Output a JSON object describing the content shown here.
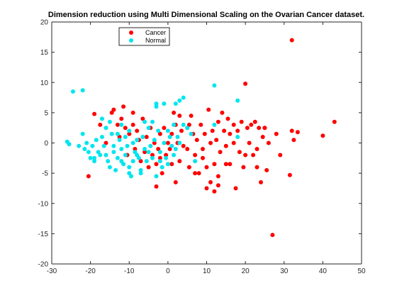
{
  "chart_data": {
    "type": "scatter",
    "title": "Dimension reduction using Multi Dimensional Scaling on the Ovarian Cancer dataset.",
    "xlabel": "",
    "ylabel": "",
    "xlim": [
      -30,
      50
    ],
    "ylim": [
      -20,
      20
    ],
    "xticks": [
      "-30",
      "-20",
      "-10",
      "0",
      "10",
      "20",
      "30",
      "40",
      "50"
    ],
    "yticks": [
      "-20",
      "-15",
      "-10",
      "-5",
      "0",
      "5",
      "10",
      "15",
      "20"
    ],
    "grid": false,
    "legend_position": "top-left",
    "series": [
      {
        "name": "Cancer",
        "color": "#ff0000",
        "points": [
          [
            32,
            17
          ],
          [
            -19,
            4.8
          ],
          [
            -20.5,
            -5.5
          ],
          [
            -17.5,
            3
          ],
          [
            -16,
            0
          ],
          [
            -14.5,
            5
          ],
          [
            -14,
            5.5
          ],
          [
            -13,
            3
          ],
          [
            -12.5,
            1
          ],
          [
            -12,
            4
          ],
          [
            -11.5,
            6
          ],
          [
            -11,
            2.5
          ],
          [
            -10.5,
            -2
          ],
          [
            -10,
            1.5
          ],
          [
            -9,
            5
          ],
          [
            -9,
            3
          ],
          [
            -8.5,
            -1
          ],
          [
            -8,
            2
          ],
          [
            -7.5,
            0.5
          ],
          [
            -7,
            -3
          ],
          [
            -6.5,
            4
          ],
          [
            -6,
            -1.5
          ],
          [
            -5.5,
            1
          ],
          [
            -5,
            -4
          ],
          [
            -4.5,
            2.5
          ],
          [
            -4,
            -2
          ],
          [
            -3.5,
            0
          ],
          [
            -3,
            -3.5
          ],
          [
            -3,
            -7.2
          ],
          [
            -2.5,
            -1
          ],
          [
            -2,
            1.5
          ],
          [
            -1.5,
            -5
          ],
          [
            -1,
            2.5
          ],
          [
            -0.5,
            -2
          ],
          [
            0,
            0
          ],
          [
            0.5,
            -1
          ],
          [
            1,
            1.5
          ],
          [
            1,
            -3.5
          ],
          [
            1.5,
            5
          ],
          [
            2,
            3
          ],
          [
            2,
            -6.5
          ],
          [
            2.5,
            0
          ],
          [
            3,
            -3
          ],
          [
            3.5,
            2
          ],
          [
            4,
            -0.5
          ],
          [
            5,
            2.5
          ],
          [
            5,
            -1
          ],
          [
            5.5,
            -4
          ],
          [
            6,
            4.5
          ],
          [
            6.5,
            1.5
          ],
          [
            7,
            -2
          ],
          [
            7.5,
            0.5
          ],
          [
            8,
            -5
          ],
          [
            8.5,
            3
          ],
          [
            9,
            -1
          ],
          [
            9,
            -2.5
          ],
          [
            9.5,
            1.5
          ],
          [
            10,
            -4
          ],
          [
            10.5,
            5.5
          ],
          [
            11,
            0
          ],
          [
            11,
            -6.5
          ],
          [
            11.5,
            2
          ],
          [
            12,
            -3.5
          ],
          [
            12.5,
            0.5
          ],
          [
            13,
            3.5
          ],
          [
            13,
            -5.5
          ],
          [
            13.5,
            -1.5
          ],
          [
            14,
            5
          ],
          [
            14.5,
            2
          ],
          [
            15,
            -0.5
          ],
          [
            15.5,
            4
          ],
          [
            16,
            1.5
          ],
          [
            16,
            -3.5
          ],
          [
            17,
            0
          ],
          [
            17.5,
            -7.5
          ],
          [
            18,
            2
          ],
          [
            18.5,
            -1.5
          ],
          [
            19,
            3.5
          ],
          [
            19.5,
            -4
          ],
          [
            20,
            9.8
          ],
          [
            20.5,
            2.5
          ],
          [
            21,
            0
          ],
          [
            21.5,
            3
          ],
          [
            22,
            -2
          ],
          [
            22.5,
            3.5
          ],
          [
            23,
            -1
          ],
          [
            23.5,
            2.5
          ],
          [
            24,
            -6.5
          ],
          [
            24.5,
            1
          ],
          [
            25,
            2.5
          ],
          [
            25.5,
            -4.5
          ],
          [
            26,
            0
          ],
          [
            27,
            -15.2
          ],
          [
            28,
            1.5
          ],
          [
            29,
            -2
          ],
          [
            31.5,
            -5.3
          ],
          [
            32,
            2
          ],
          [
            32.5,
            0.5
          ],
          [
            33.5,
            1.8
          ],
          [
            40,
            1.2
          ],
          [
            43,
            3.5
          ],
          [
            12,
            -8
          ],
          [
            10,
            -7.5
          ],
          [
            13,
            -7
          ],
          [
            5.5,
            3
          ],
          [
            3,
            4.5
          ],
          [
            -2,
            -2.5
          ],
          [
            7,
            -5
          ],
          [
            15,
            -3.5
          ],
          [
            17,
            3
          ],
          [
            20,
            -2
          ],
          [
            23,
            -4
          ],
          [
            25,
            2.5
          ]
        ]
      },
      {
        "name": "Normal",
        "color": "#00e5ee",
        "points": [
          [
            -24.5,
            8.5
          ],
          [
            -22,
            8.7
          ],
          [
            -26,
            0.2
          ],
          [
            -25.5,
            -0.2
          ],
          [
            -22,
            1.5
          ],
          [
            -21.5,
            -1
          ],
          [
            -21,
            0
          ],
          [
            -20.5,
            -1.5
          ],
          [
            -20,
            -2.5
          ],
          [
            -19.5,
            -0.5
          ],
          [
            -19,
            -3
          ],
          [
            -18.5,
            0.5
          ],
          [
            -18,
            -1.5
          ],
          [
            -17.5,
            -2
          ],
          [
            -17,
            1
          ],
          [
            -16.5,
            -0.5
          ],
          [
            -16,
            2.5
          ],
          [
            -15.5,
            -3
          ],
          [
            -15,
            -4
          ],
          [
            -14.5,
            1.5
          ],
          [
            -14,
            -1.5
          ],
          [
            -13.5,
            -4.5
          ],
          [
            -13,
            -2.5
          ],
          [
            -12.5,
            0.5
          ],
          [
            -12,
            -1
          ],
          [
            -11.5,
            -3.5
          ],
          [
            -11,
            -2
          ],
          [
            -10.5,
            -0.5
          ],
          [
            -10,
            -4
          ],
          [
            -9.5,
            -5.5
          ],
          [
            -9,
            -3
          ],
          [
            -8.5,
            -1.5
          ],
          [
            -8,
            0.5
          ],
          [
            -7.5,
            -2.5
          ],
          [
            -7,
            -4.5
          ],
          [
            -6.5,
            1
          ],
          [
            -6,
            -1
          ],
          [
            -5.5,
            -3
          ],
          [
            -5,
            2.5
          ],
          [
            -4.5,
            -0.5
          ],
          [
            -4,
            -2.5
          ],
          [
            -3.5,
            0.5
          ],
          [
            -3,
            -5.5
          ],
          [
            -2.5,
            2
          ],
          [
            -2,
            -1.5
          ],
          [
            -1.5,
            -4
          ],
          [
            -1,
            0
          ],
          [
            -0.5,
            -2.5
          ],
          [
            0,
            -3.5
          ],
          [
            0.5,
            1
          ],
          [
            1,
            -0.5
          ],
          [
            1.5,
            -2
          ],
          [
            -3,
            6.5
          ],
          [
            -3,
            6
          ],
          [
            -1,
            6.5
          ],
          [
            2,
            6.5
          ],
          [
            1.5,
            3
          ],
          [
            2.5,
            1
          ],
          [
            3,
            7
          ],
          [
            4,
            7.5
          ],
          [
            5,
            2.5
          ],
          [
            6,
            1.5
          ],
          [
            7,
            -3
          ],
          [
            12,
            9.5
          ],
          [
            18,
            7
          ],
          [
            -15,
            3.5
          ],
          [
            -12,
            3
          ],
          [
            -17,
            4
          ],
          [
            -10,
            2
          ],
          [
            -8,
            -2
          ],
          [
            -6,
            3.5
          ],
          [
            -14,
            -0.5
          ],
          [
            -16,
            -2
          ],
          [
            -12,
            -3
          ],
          [
            -9,
            0
          ],
          [
            -7,
            -5
          ],
          [
            -11,
            1
          ],
          [
            -13,
            1.5
          ],
          [
            -4,
            3.5
          ],
          [
            0,
            2
          ],
          [
            -2,
            -3
          ],
          [
            -5,
            -1.5
          ],
          [
            2,
            -1
          ],
          [
            3,
            0
          ],
          [
            4,
            3
          ],
          [
            12,
            3
          ],
          [
            18,
            1
          ],
          [
            -19,
            -2.5
          ],
          [
            -23,
            -0.5
          ],
          [
            -10,
            -5
          ]
        ]
      }
    ]
  }
}
